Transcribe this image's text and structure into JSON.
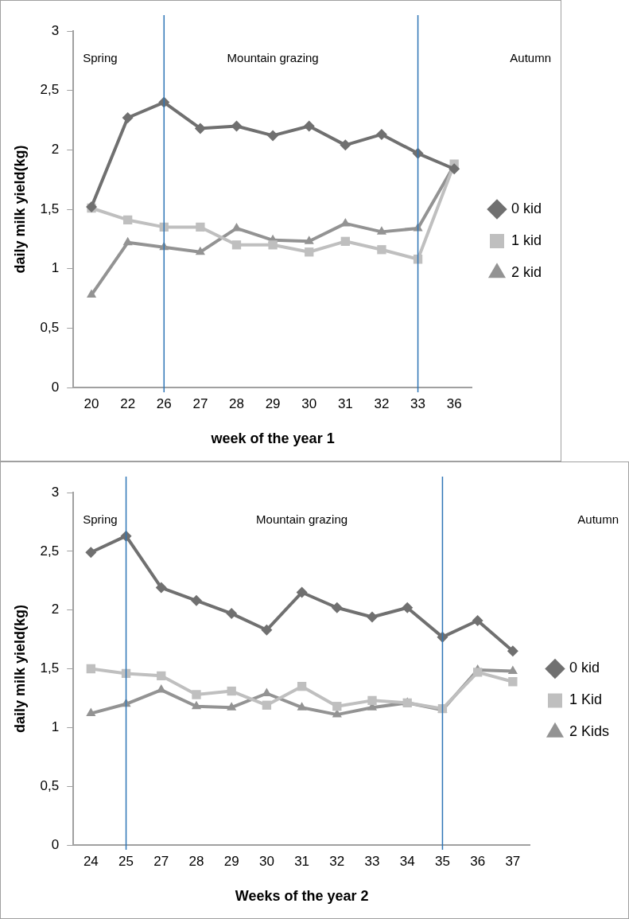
{
  "chart_data": [
    {
      "type": "line",
      "xlabel": "week of the year 1",
      "ylabel": "daily milk yield(kg)",
      "categories": [
        "20",
        "22",
        "26",
        "27",
        "28",
        "29",
        "30",
        "31",
        "32",
        "33",
        "36"
      ],
      "series": [
        {
          "name": "0 kid",
          "color": "#707070",
          "marker": "diamond",
          "values": [
            1.52,
            2.27,
            2.4,
            2.18,
            2.2,
            2.12,
            2.2,
            2.04,
            2.13,
            1.97,
            1.84
          ]
        },
        {
          "name": "1 kid",
          "color": "#bfbfbf",
          "marker": "square",
          "values": [
            1.51,
            1.41,
            1.35,
            1.35,
            1.2,
            1.2,
            1.14,
            1.23,
            1.16,
            1.08,
            1.88
          ]
        },
        {
          "name": "2 kid",
          "color": "#939393",
          "marker": "triangle",
          "values": [
            0.78,
            1.22,
            1.18,
            1.14,
            1.34,
            1.24,
            1.23,
            1.38,
            1.31,
            1.34,
            1.87
          ]
        }
      ],
      "ylim": [
        0,
        3
      ],
      "yticks": [
        0,
        {
          "value": 0.5,
          "label": "0,5"
        },
        1,
        {
          "value": 1.5,
          "label": "1,5"
        },
        2,
        {
          "value": 2.5,
          "label": "2,5"
        },
        3
      ],
      "grid": false,
      "legend": "right",
      "ref_lines": [
        {
          "axis": "x",
          "value": "26",
          "color": "#2e75b6"
        },
        {
          "axis": "x",
          "value": "33",
          "color": "#2e75b6"
        }
      ],
      "annotations": [
        "Spring",
        "Mountain grazing",
        "Autumn"
      ]
    },
    {
      "type": "line",
      "xlabel": "Weeks of the year 2",
      "ylabel": "daily milk yield(kg)",
      "categories": [
        "24",
        "25",
        "27",
        "28",
        "29",
        "30",
        "31",
        "32",
        "33",
        "34",
        "35",
        "36",
        "37"
      ],
      "series": [
        {
          "name": "0 kid",
          "color": "#707070",
          "marker": "diamond",
          "values": [
            2.49,
            2.63,
            2.19,
            2.08,
            1.97,
            1.83,
            2.15,
            2.02,
            1.94,
            2.02,
            1.77,
            1.91,
            1.65
          ]
        },
        {
          "name": "1 Kid",
          "color": "#bfbfbf",
          "marker": "square",
          "values": [
            1.5,
            1.46,
            1.44,
            1.28,
            1.31,
            1.19,
            1.35,
            1.18,
            1.23,
            1.21,
            1.16,
            1.47,
            1.39
          ]
        },
        {
          "name": "2 Kids",
          "color": "#939393",
          "marker": "triangle",
          "values": [
            1.12,
            1.2,
            1.32,
            1.18,
            1.17,
            1.29,
            1.17,
            1.11,
            1.17,
            1.21,
            1.15,
            1.49,
            1.48
          ]
        }
      ],
      "ylim": [
        0,
        3
      ],
      "yticks": [
        0,
        {
          "value": 0.5,
          "label": "0,5"
        },
        1,
        {
          "value": 1.5,
          "label": "1,5"
        },
        2,
        {
          "value": 2.5,
          "label": "2,5"
        },
        3
      ],
      "grid": false,
      "legend": "right",
      "ref_lines": [
        {
          "axis": "x",
          "value": "25",
          "color": "#2e75b6"
        },
        {
          "axis": "x",
          "value": "35",
          "color": "#2e75b6"
        }
      ],
      "annotations": [
        "Spring",
        "Mountain grazing",
        "Autumn"
      ]
    }
  ]
}
